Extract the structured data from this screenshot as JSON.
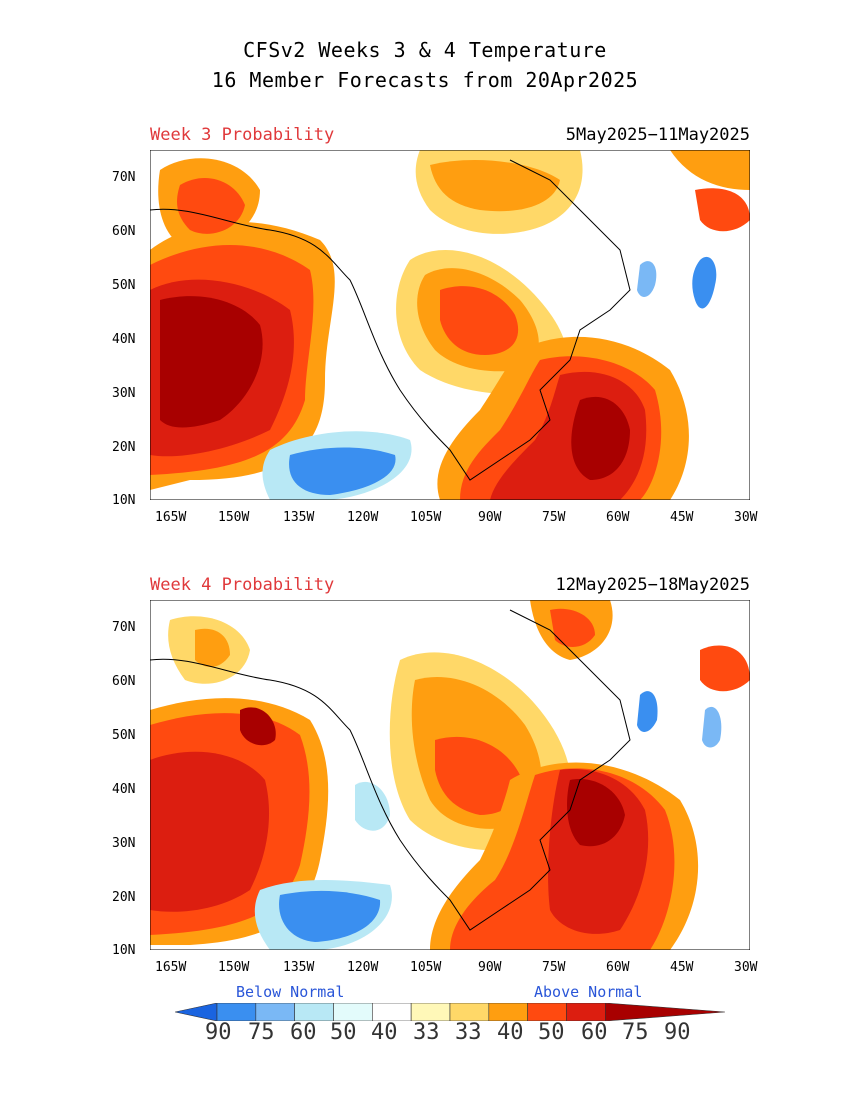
{
  "title": {
    "line1": "CFSv2 Weeks 3 & 4 Temperature",
    "line2": "16 Member Forecasts from 20Apr2025"
  },
  "panels": [
    {
      "label": "Week 3 Probability",
      "dates": "5May2025−11May2025"
    },
    {
      "label": "Week 4 Probability",
      "dates": "12May2025−18May2025"
    }
  ],
  "axes": {
    "lat_labels": [
      "70N",
      "60N",
      "50N",
      "40N",
      "30N",
      "20N",
      "10N"
    ],
    "lon_labels": [
      "165W",
      "150W",
      "135W",
      "120W",
      "105W",
      "90W",
      "75W",
      "60W",
      "45W",
      "30W"
    ]
  },
  "legend": {
    "below": "Below Normal",
    "above": "Above Normal",
    "numbers": [
      "90",
      "75",
      "60",
      "50",
      "40",
      "33",
      "33",
      "40",
      "50",
      "60",
      "75",
      "90"
    ],
    "colors": [
      "#1a64e0",
      "#3a8ff0",
      "#7ab8f5",
      "#b8e8f5",
      "#e3fbfb",
      "#ffffff",
      "#fff8b8",
      "#ffd868",
      "#ff9e10",
      "#ff4a10",
      "#dc1e10",
      "#a80000"
    ],
    "left_arrow_color": "#1a64e0",
    "right_arrow_color": "#a80000"
  }
}
